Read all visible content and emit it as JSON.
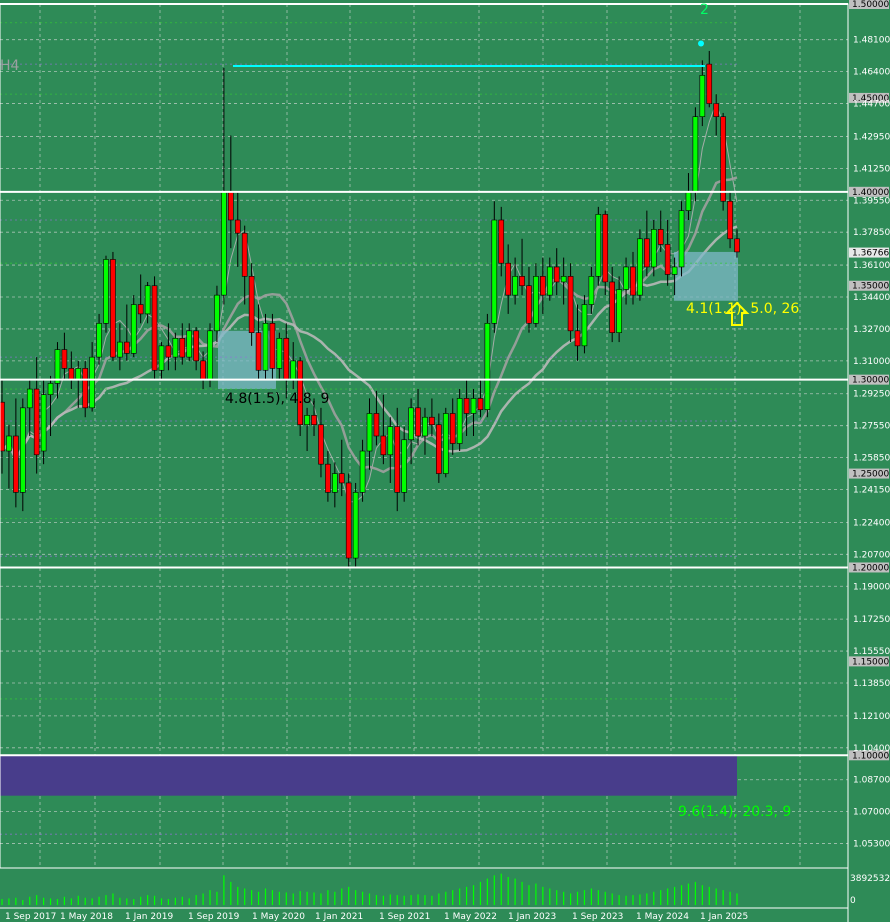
{
  "chart_data": {
    "type": "candlestick",
    "instrument_hint": "",
    "y_range": [
      1.04,
      1.5
    ],
    "price_ticks": [
      "1.48100",
      "1.46400",
      "1.44700",
      "1.42950",
      "1.41250",
      "1.39550",
      "1.37850",
      "1.36100",
      "1.34400",
      "1.32700",
      "1.31000",
      "1.29250",
      "1.27550",
      "1.25850",
      "1.24150",
      "1.22400",
      "1.20700",
      "1.19000",
      "1.17250",
      "1.15550",
      "1.13850",
      "1.12100",
      "1.10400",
      "1.08700",
      "1.07000",
      "1.05300"
    ],
    "boxed_levels": [
      "1.50000",
      "1.45000",
      "1.40000",
      "1.36766",
      "1.35000",
      "1.30000",
      "1.25000",
      "1.20000",
      "1.15000",
      "1.10000"
    ],
    "white_lines": [
      1.5,
      1.4,
      1.3,
      1.2,
      1.1
    ],
    "x_ticks": [
      "1 Sep 2017",
      "1 May 2018",
      "1 Jan 2019",
      "1 Sep 2019",
      "1 May 2020",
      "1 Jan 2021",
      "1 Sep 2021",
      "1 May 2022",
      "1 Jan 2023",
      "1 Sep 2023",
      "1 May 2024",
      "1 Jan 2025"
    ],
    "current_price": 1.36766,
    "volume_labels": [
      "3892532",
      "0"
    ],
    "annotations": [
      {
        "text": "4.8(1.5), 4.8, 9",
        "color": "#000000"
      },
      {
        "text": "4.1(1.1), 5.0, 26",
        "color": "#ffff00"
      },
      {
        "text": "9.6(1.4), 20.3, 9",
        "color": "#00ff00"
      }
    ],
    "top_left_label": "H4",
    "wave_label": "2",
    "candles": [
      {
        "o": 1.288,
        "h": 1.3,
        "l": 1.25,
        "c": 1.262
      },
      {
        "o": 1.262,
        "h": 1.276,
        "l": 1.242,
        "c": 1.27
      },
      {
        "o": 1.27,
        "h": 1.29,
        "l": 1.232,
        "c": 1.24
      },
      {
        "o": 1.24,
        "h": 1.29,
        "l": 1.23,
        "c": 1.285
      },
      {
        "o": 1.285,
        "h": 1.3,
        "l": 1.27,
        "c": 1.295
      },
      {
        "o": 1.295,
        "h": 1.312,
        "l": 1.25,
        "c": 1.26
      },
      {
        "o": 1.262,
        "h": 1.3,
        "l": 1.255,
        "c": 1.292
      },
      {
        "o": 1.292,
        "h": 1.302,
        "l": 1.27,
        "c": 1.298
      },
      {
        "o": 1.298,
        "h": 1.32,
        "l": 1.29,
        "c": 1.316
      },
      {
        "o": 1.316,
        "h": 1.325,
        "l": 1.3,
        "c": 1.306
      },
      {
        "o": 1.306,
        "h": 1.315,
        "l": 1.295,
        "c": 1.3
      },
      {
        "o": 1.3,
        "h": 1.31,
        "l": 1.285,
        "c": 1.306
      },
      {
        "o": 1.306,
        "h": 1.31,
        "l": 1.28,
        "c": 1.285
      },
      {
        "o": 1.285,
        "h": 1.32,
        "l": 1.283,
        "c": 1.312
      },
      {
        "o": 1.312,
        "h": 1.335,
        "l": 1.308,
        "c": 1.33
      },
      {
        "o": 1.33,
        "h": 1.366,
        "l": 1.325,
        "c": 1.364
      },
      {
        "o": 1.364,
        "h": 1.368,
        "l": 1.31,
        "c": 1.312
      },
      {
        "o": 1.312,
        "h": 1.33,
        "l": 1.305,
        "c": 1.32
      },
      {
        "o": 1.32,
        "h": 1.34,
        "l": 1.31,
        "c": 1.314
      },
      {
        "o": 1.314,
        "h": 1.345,
        "l": 1.312,
        "c": 1.34
      },
      {
        "o": 1.34,
        "h": 1.356,
        "l": 1.33,
        "c": 1.335
      },
      {
        "o": 1.335,
        "h": 1.352,
        "l": 1.33,
        "c": 1.35
      },
      {
        "o": 1.35,
        "h": 1.355,
        "l": 1.3,
        "c": 1.305
      },
      {
        "o": 1.305,
        "h": 1.32,
        "l": 1.3,
        "c": 1.318
      },
      {
        "o": 1.318,
        "h": 1.33,
        "l": 1.305,
        "c": 1.312
      },
      {
        "o": 1.312,
        "h": 1.325,
        "l": 1.305,
        "c": 1.322
      },
      {
        "o": 1.322,
        "h": 1.33,
        "l": 1.308,
        "c": 1.312
      },
      {
        "o": 1.312,
        "h": 1.33,
        "l": 1.31,
        "c": 1.326
      },
      {
        "o": 1.326,
        "h": 1.328,
        "l": 1.305,
        "c": 1.31
      },
      {
        "o": 1.31,
        "h": 1.315,
        "l": 1.295,
        "c": 1.3
      },
      {
        "o": 1.3,
        "h": 1.33,
        "l": 1.296,
        "c": 1.326
      },
      {
        "o": 1.326,
        "h": 1.35,
        "l": 1.32,
        "c": 1.345
      },
      {
        "o": 1.345,
        "h": 1.466,
        "l": 1.34,
        "c": 1.4
      },
      {
        "o": 1.4,
        "h": 1.43,
        "l": 1.37,
        "c": 1.385
      },
      {
        "o": 1.385,
        "h": 1.4,
        "l": 1.36,
        "c": 1.378
      },
      {
        "o": 1.378,
        "h": 1.382,
        "l": 1.34,
        "c": 1.355
      },
      {
        "o": 1.355,
        "h": 1.362,
        "l": 1.318,
        "c": 1.325
      },
      {
        "o": 1.325,
        "h": 1.34,
        "l": 1.3,
        "c": 1.305
      },
      {
        "o": 1.305,
        "h": 1.335,
        "l": 1.3,
        "c": 1.33
      },
      {
        "o": 1.33,
        "h": 1.335,
        "l": 1.3,
        "c": 1.306
      },
      {
        "o": 1.306,
        "h": 1.325,
        "l": 1.3,
        "c": 1.322
      },
      {
        "o": 1.322,
        "h": 1.33,
        "l": 1.29,
        "c": 1.3
      },
      {
        "o": 1.3,
        "h": 1.32,
        "l": 1.295,
        "c": 1.31
      },
      {
        "o": 1.31,
        "h": 1.312,
        "l": 1.27,
        "c": 1.276
      },
      {
        "o": 1.276,
        "h": 1.285,
        "l": 1.262,
        "c": 1.281
      },
      {
        "o": 1.281,
        "h": 1.29,
        "l": 1.27,
        "c": 1.276
      },
      {
        "o": 1.276,
        "h": 1.285,
        "l": 1.248,
        "c": 1.255
      },
      {
        "o": 1.255,
        "h": 1.262,
        "l": 1.235,
        "c": 1.24
      },
      {
        "o": 1.24,
        "h": 1.256,
        "l": 1.232,
        "c": 1.25
      },
      {
        "o": 1.25,
        "h": 1.268,
        "l": 1.238,
        "c": 1.245
      },
      {
        "o": 1.245,
        "h": 1.25,
        "l": 1.2,
        "c": 1.205
      },
      {
        "o": 1.205,
        "h": 1.245,
        "l": 1.2,
        "c": 1.24
      },
      {
        "o": 1.24,
        "h": 1.268,
        "l": 1.235,
        "c": 1.262
      },
      {
        "o": 1.262,
        "h": 1.29,
        "l": 1.252,
        "c": 1.282
      },
      {
        "o": 1.282,
        "h": 1.294,
        "l": 1.265,
        "c": 1.27
      },
      {
        "o": 1.27,
        "h": 1.292,
        "l": 1.255,
        "c": 1.26
      },
      {
        "o": 1.26,
        "h": 1.28,
        "l": 1.245,
        "c": 1.275
      },
      {
        "o": 1.275,
        "h": 1.285,
        "l": 1.23,
        "c": 1.24
      },
      {
        "o": 1.24,
        "h": 1.275,
        "l": 1.235,
        "c": 1.268
      },
      {
        "o": 1.268,
        "h": 1.29,
        "l": 1.255,
        "c": 1.285
      },
      {
        "o": 1.285,
        "h": 1.295,
        "l": 1.265,
        "c": 1.27
      },
      {
        "o": 1.27,
        "h": 1.285,
        "l": 1.26,
        "c": 1.28
      },
      {
        "o": 1.28,
        "h": 1.29,
        "l": 1.27,
        "c": 1.276
      },
      {
        "o": 1.276,
        "h": 1.282,
        "l": 1.245,
        "c": 1.25
      },
      {
        "o": 1.25,
        "h": 1.285,
        "l": 1.248,
        "c": 1.282
      },
      {
        "o": 1.282,
        "h": 1.29,
        "l": 1.26,
        "c": 1.266
      },
      {
        "o": 1.266,
        "h": 1.295,
        "l": 1.262,
        "c": 1.29
      },
      {
        "o": 1.29,
        "h": 1.3,
        "l": 1.27,
        "c": 1.282
      },
      {
        "o": 1.282,
        "h": 1.295,
        "l": 1.27,
        "c": 1.29
      },
      {
        "o": 1.29,
        "h": 1.3,
        "l": 1.28,
        "c": 1.284
      },
      {
        "o": 1.284,
        "h": 1.335,
        "l": 1.28,
        "c": 1.33
      },
      {
        "o": 1.33,
        "h": 1.395,
        "l": 1.325,
        "c": 1.385
      },
      {
        "o": 1.385,
        "h": 1.392,
        "l": 1.355,
        "c": 1.362
      },
      {
        "o": 1.362,
        "h": 1.372,
        "l": 1.335,
        "c": 1.345
      },
      {
        "o": 1.345,
        "h": 1.365,
        "l": 1.34,
        "c": 1.355
      },
      {
        "o": 1.355,
        "h": 1.375,
        "l": 1.345,
        "c": 1.35
      },
      {
        "o": 1.35,
        "h": 1.36,
        "l": 1.325,
        "c": 1.33
      },
      {
        "o": 1.33,
        "h": 1.362,
        "l": 1.328,
        "c": 1.355
      },
      {
        "o": 1.355,
        "h": 1.365,
        "l": 1.335,
        "c": 1.345
      },
      {
        "o": 1.345,
        "h": 1.365,
        "l": 1.342,
        "c": 1.36
      },
      {
        "o": 1.36,
        "h": 1.37,
        "l": 1.345,
        "c": 1.352
      },
      {
        "o": 1.352,
        "h": 1.365,
        "l": 1.34,
        "c": 1.355
      },
      {
        "o": 1.355,
        "h": 1.362,
        "l": 1.32,
        "c": 1.326
      },
      {
        "o": 1.326,
        "h": 1.34,
        "l": 1.31,
        "c": 1.318
      },
      {
        "o": 1.318,
        "h": 1.345,
        "l": 1.314,
        "c": 1.34
      },
      {
        "o": 1.34,
        "h": 1.36,
        "l": 1.335,
        "c": 1.355
      },
      {
        "o": 1.355,
        "h": 1.392,
        "l": 1.35,
        "c": 1.388
      },
      {
        "o": 1.388,
        "h": 1.39,
        "l": 1.345,
        "c": 1.352
      },
      {
        "o": 1.352,
        "h": 1.36,
        "l": 1.32,
        "c": 1.325
      },
      {
        "o": 1.325,
        "h": 1.355,
        "l": 1.32,
        "c": 1.348
      },
      {
        "o": 1.348,
        "h": 1.365,
        "l": 1.34,
        "c": 1.36
      },
      {
        "o": 1.36,
        "h": 1.368,
        "l": 1.34,
        "c": 1.345
      },
      {
        "o": 1.345,
        "h": 1.38,
        "l": 1.342,
        "c": 1.375
      },
      {
        "o": 1.375,
        "h": 1.39,
        "l": 1.355,
        "c": 1.36
      },
      {
        "o": 1.36,
        "h": 1.385,
        "l": 1.355,
        "c": 1.38
      },
      {
        "o": 1.38,
        "h": 1.39,
        "l": 1.368,
        "c": 1.372
      },
      {
        "o": 1.372,
        "h": 1.385,
        "l": 1.35,
        "c": 1.356
      },
      {
        "o": 1.356,
        "h": 1.365,
        "l": 1.345,
        "c": 1.36
      },
      {
        "o": 1.36,
        "h": 1.395,
        "l": 1.355,
        "c": 1.39
      },
      {
        "o": 1.39,
        "h": 1.41,
        "l": 1.385,
        "c": 1.4
      },
      {
        "o": 1.4,
        "h": 1.445,
        "l": 1.395,
        "c": 1.44
      },
      {
        "o": 1.44,
        "h": 1.47,
        "l": 1.435,
        "c": 1.462
      },
      {
        "o": 1.468,
        "h": 1.475,
        "l": 1.445,
        "c": 1.447
      },
      {
        "o": 1.447,
        "h": 1.452,
        "l": 1.43,
        "c": 1.44
      },
      {
        "o": 1.44,
        "h": 1.442,
        "l": 1.39,
        "c": 1.395
      },
      {
        "o": 1.395,
        "h": 1.4,
        "l": 1.37,
        "c": 1.375
      },
      {
        "o": 1.375,
        "h": 1.38,
        "l": 1.365,
        "c": 1.368
      }
    ],
    "volumes": [
      0.18,
      0.2,
      0.22,
      0.15,
      0.25,
      0.3,
      0.22,
      0.2,
      0.18,
      0.25,
      0.2,
      0.28,
      0.22,
      0.2,
      0.25,
      0.3,
      0.35,
      0.22,
      0.2,
      0.18,
      0.25,
      0.3,
      0.28,
      0.2,
      0.18,
      0.22,
      0.25,
      0.2,
      0.3,
      0.35,
      0.45,
      0.4,
      0.9,
      0.7,
      0.55,
      0.5,
      0.45,
      0.4,
      0.5,
      0.45,
      0.4,
      0.38,
      0.35,
      0.42,
      0.4,
      0.38,
      0.35,
      0.45,
      0.4,
      0.5,
      0.55,
      0.45,
      0.4,
      0.35,
      0.3,
      0.28,
      0.32,
      0.3,
      0.28,
      0.3,
      0.32,
      0.3,
      0.28,
      0.35,
      0.4,
      0.45,
      0.5,
      0.55,
      0.6,
      0.7,
      0.8,
      0.9,
      0.95,
      0.85,
      0.8,
      0.7,
      0.6,
      0.65,
      0.55,
      0.5,
      0.45,
      0.4,
      0.35,
      0.4,
      0.45,
      0.5,
      0.45,
      0.4,
      0.35,
      0.3,
      0.28,
      0.3,
      0.32,
      0.35,
      0.4,
      0.45,
      0.5,
      0.55,
      0.6,
      0.65,
      0.7,
      0.6,
      0.55,
      0.5,
      0.45,
      0.4,
      0.35
    ]
  }
}
